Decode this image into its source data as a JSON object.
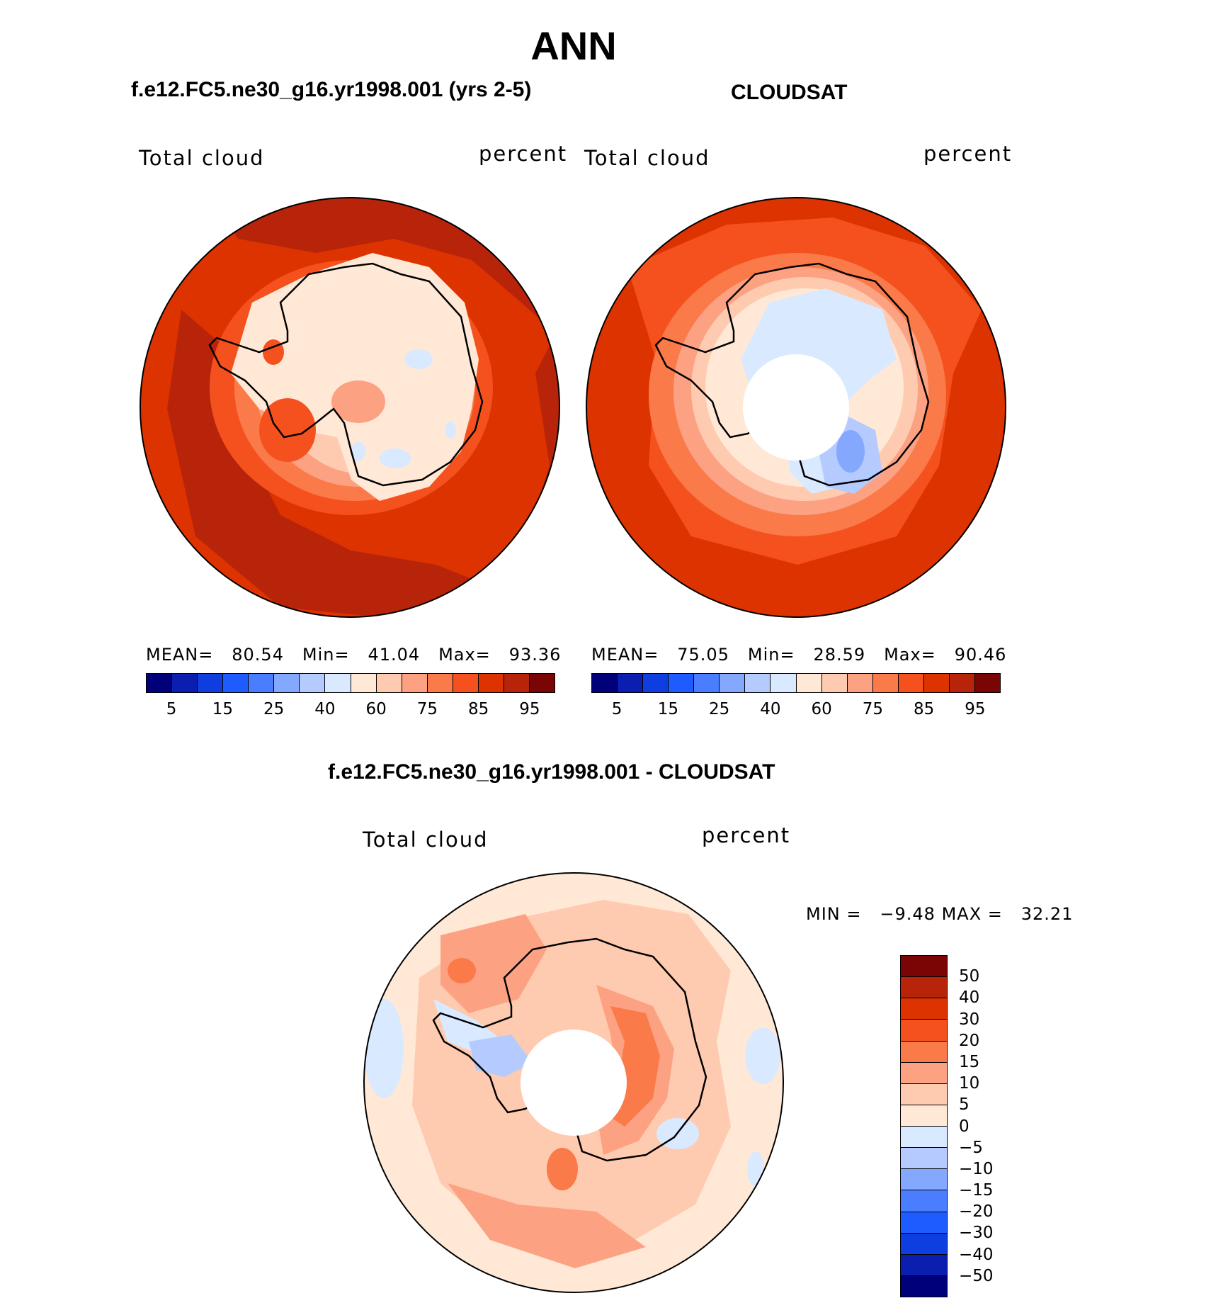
{
  "title": "ANN",
  "panels": [
    {
      "title": "f.e12.FC5.ne30_g16.yr1998.001 (yrs 2-5)",
      "left_label": "Total cloud",
      "right_label": "percent",
      "stats": {
        "mean_label": "MEAN=",
        "mean": "80.54",
        "min_label": "Min=",
        "min": "41.04",
        "max_label": "Max=",
        "max": "93.36"
      }
    },
    {
      "title": "CLOUDSAT",
      "left_label": "Total cloud",
      "right_label": "percent",
      "stats": {
        "mean_label": "MEAN=",
        "mean": "75.05",
        "min_label": "Min=",
        "min": "28.59",
        "max_label": "Max=",
        "max": "90.46"
      }
    }
  ],
  "horizontal_colorbar": {
    "colors": [
      "#00007a",
      "#0a1fb0",
      "#0f3ee0",
      "#1f5cff",
      "#4a7dff",
      "#85a8ff",
      "#b5caff",
      "#d9e9ff",
      "#ffe9d6",
      "#ffcbb0",
      "#fca283",
      "#fa7a4a",
      "#f5511f",
      "#dd3300",
      "#b8240a",
      "#7a0505"
    ],
    "tick_labels": [
      "5",
      "15",
      "25",
      "40",
      "60",
      "75",
      "85",
      "95"
    ]
  },
  "difference_panel": {
    "title": "f.e12.FC5.ne30_g16.yr1998.001 - CLOUDSAT",
    "left_label": "Total cloud",
    "right_label": "percent",
    "stats": {
      "min_label": "MIN =",
      "min": "−9.48",
      "max_label": "MAX =",
      "max": "32.21"
    }
  },
  "vertical_colorbar": {
    "colors": [
      "#7a0505",
      "#b8240a",
      "#dd3300",
      "#f5511f",
      "#fa7a4a",
      "#fca283",
      "#ffcbb0",
      "#ffe9d6",
      "#d9e9ff",
      "#b5caff",
      "#85a8ff",
      "#4a7dff",
      "#1f5cff",
      "#0f3ee0",
      "#0a1fb0",
      "#00007a"
    ],
    "tick_labels": [
      "50",
      "40",
      "30",
      "20",
      "15",
      "10",
      "5",
      "0",
      "−5",
      "−10",
      "−15",
      "−20",
      "−30",
      "−40",
      "−50"
    ]
  }
}
